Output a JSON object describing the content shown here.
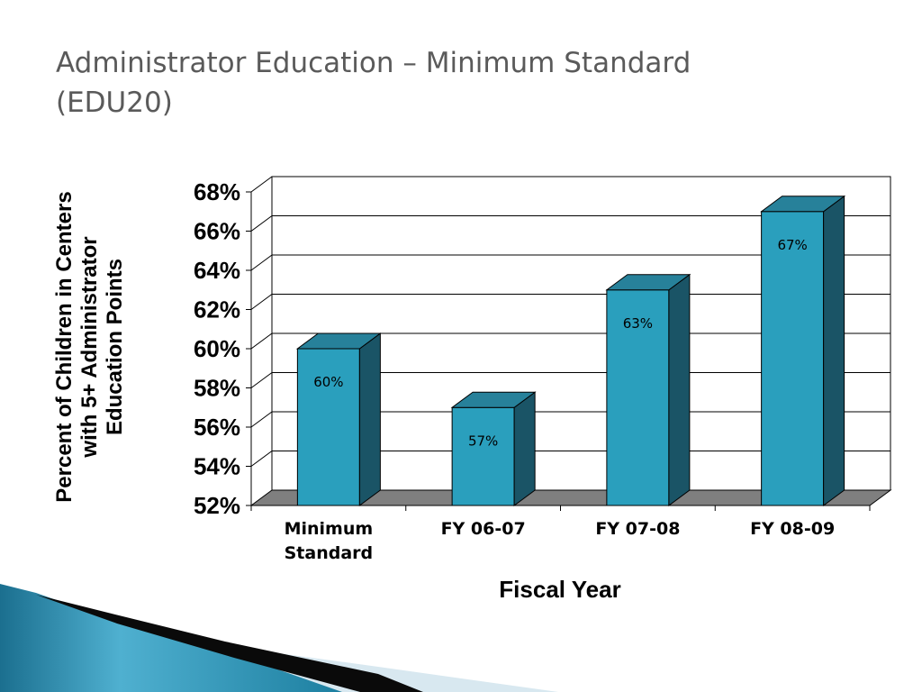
{
  "slide": {
    "title_line1": "Administrator Education – Minimum Standard",
    "title_line2": "(EDU20)"
  },
  "chart_data": {
    "type": "bar",
    "xlabel": "Fiscal Year",
    "ylabel": "Percent of Children in Centers with 5+ Administrator Education Points",
    "categories": [
      "Minimum Standard",
      "FY 06-07",
      "FY 07-08",
      "FY 08-09"
    ],
    "values": [
      60,
      57,
      63,
      67
    ],
    "data_labels": [
      "60%",
      "57%",
      "63%",
      "67%"
    ],
    "ylim": [
      52,
      68
    ],
    "yticks": [
      "52%",
      "54%",
      "56%",
      "58%",
      "60%",
      "62%",
      "64%",
      "66%",
      "68%"
    ],
    "grid": true,
    "legend": "none",
    "colors": {
      "bar_front": "#2a9fbd",
      "bar_side": "#1a5466",
      "bar_top": "#27819a",
      "floor": "#7f7f7f"
    }
  }
}
